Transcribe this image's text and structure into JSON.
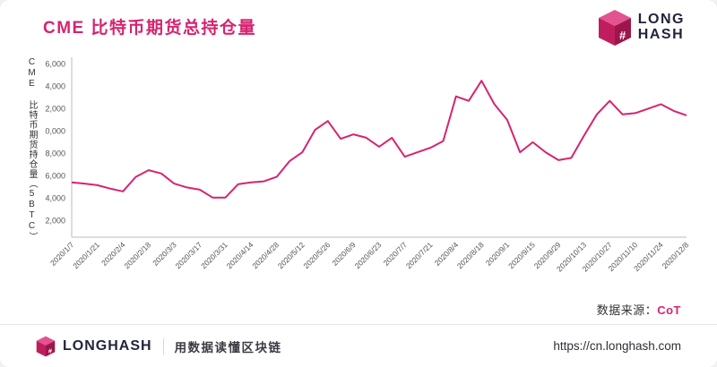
{
  "header": {
    "title": "CME 比特币期货总持仓量",
    "logo": {
      "line1": "LONG",
      "line2": "HASH"
    }
  },
  "chart_data": {
    "type": "line",
    "title": "CME 比特币期货总持仓量",
    "ylabel": "CME 比特币期货持仓量（5BTC）",
    "xlabel": "",
    "x_tick_labels": [
      "2020/1/7",
      "2020/1/21",
      "2020/2/4",
      "2020/2/18",
      "2020/3/3",
      "2020/3/17",
      "2020/3/31",
      "2020/4/14",
      "2020/4/28",
      "2020/5/12",
      "2020/5/26",
      "2020/6/9",
      "2020/6/23",
      "2020/7/7",
      "2020/7/21",
      "2020/8/4",
      "2020/8/18",
      "2020/9/1",
      "2020/9/15",
      "2020/9/29",
      "2020/10/13",
      "2020/10/27",
      "2020/11/10",
      "2020/11/24",
      "2020/12/8"
    ],
    "points_per_tick": 2,
    "values": [
      5400,
      5300,
      5150,
      4850,
      4600,
      5900,
      6500,
      6200,
      5300,
      4950,
      4750,
      4050,
      4050,
      5250,
      5400,
      5500,
      5900,
      7300,
      8100,
      10100,
      10900,
      9300,
      9700,
      9400,
      8600,
      9400,
      7700,
      8100,
      8500,
      9100,
      13100,
      12700,
      14500,
      12400,
      11000,
      8100,
      9000,
      8100,
      7400,
      7600,
      9600,
      11500,
      12700,
      11500,
      11600,
      12000,
      12400,
      11800,
      11400
    ],
    "y_ticks": [
      2000,
      4000,
      6000,
      8000,
      10000,
      12000,
      14000,
      16000
    ],
    "ylim": [
      500,
      16600
    ],
    "grid": false,
    "legend": null,
    "line_color": "#D6246F",
    "axis_color": "#BBBBBB",
    "tick_text_color": "#555555"
  },
  "source": {
    "label": "数据来源：",
    "value": "CoT"
  },
  "footer": {
    "brand": "LONGHASH",
    "tagline": "用数据读懂区块链",
    "url": "https://cn.longhash.com"
  },
  "colors": {
    "accent": "#D6246F",
    "brand_dark": "#23243B"
  }
}
